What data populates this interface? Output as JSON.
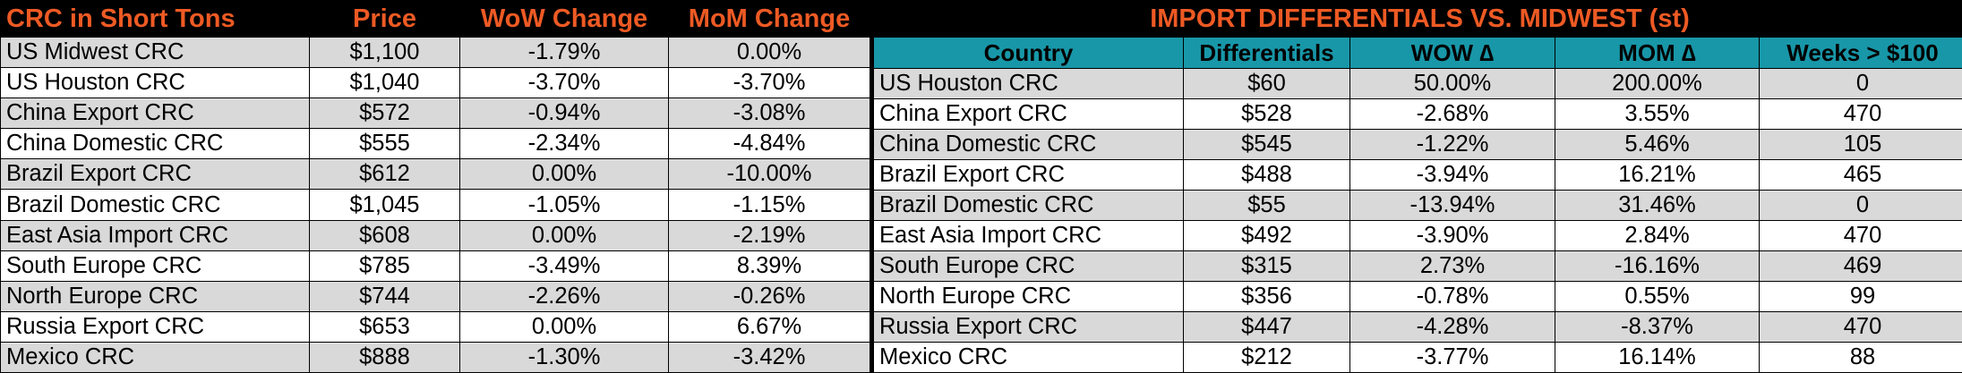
{
  "left": {
    "headers": [
      "CRC in Short Tons",
      "Price",
      "WoW Change",
      "MoM Change"
    ],
    "rows": [
      [
        "US Midwest CRC",
        "$1,100",
        "-1.79%",
        "0.00%"
      ],
      [
        "US Houston CRC",
        "$1,040",
        "-3.70%",
        "-3.70%"
      ],
      [
        "China Export CRC",
        "$572",
        "-0.94%",
        "-3.08%"
      ],
      [
        "China Domestic CRC",
        "$555",
        "-2.34%",
        "-4.84%"
      ],
      [
        "Brazil Export CRC",
        "$612",
        "0.00%",
        "-10.00%"
      ],
      [
        "Brazil Domestic CRC",
        "$1,045",
        "-1.05%",
        "-1.15%"
      ],
      [
        "East Asia Import CRC",
        "$608",
        "0.00%",
        "-2.19%"
      ],
      [
        "South Europe CRC",
        "$785",
        "-3.49%",
        "8.39%"
      ],
      [
        "North Europe CRC",
        "$744",
        "-2.26%",
        "-0.26%"
      ],
      [
        "Russia Export CRC",
        "$653",
        "0.00%",
        "6.67%"
      ],
      [
        "Mexico CRC",
        "$888",
        "-1.30%",
        "-3.42%"
      ]
    ]
  },
  "right": {
    "title": "IMPORT DIFFERENTIALS VS. MIDWEST (st)",
    "headers": [
      "Country",
      "Differentials",
      "WOW ∆",
      "MOM ∆",
      "Weeks > $100"
    ],
    "rows": [
      [
        "US Houston CRC",
        "$60",
        "50.00%",
        "200.00%",
        "0"
      ],
      [
        "China Export CRC",
        "$528",
        "-2.68%",
        "3.55%",
        "470"
      ],
      [
        "China Domestic CRC",
        "$545",
        "-1.22%",
        "5.46%",
        "105"
      ],
      [
        "Brazil Export CRC",
        "$488",
        "-3.94%",
        "16.21%",
        "465"
      ],
      [
        "Brazil Domestic CRC",
        "$55",
        "-13.94%",
        "31.46%",
        "0"
      ],
      [
        "East Asia Import CRC",
        "$492",
        "-3.90%",
        "2.84%",
        "470"
      ],
      [
        "South Europe CRC",
        "$315",
        "2.73%",
        "-16.16%",
        "469"
      ],
      [
        "North Europe CRC",
        "$356",
        "-0.78%",
        "0.55%",
        "99"
      ],
      [
        "Russia Export CRC",
        "$447",
        "-4.28%",
        "-8.37%",
        "470"
      ],
      [
        "Mexico CRC",
        "$212",
        "-3.77%",
        "16.14%",
        "88"
      ]
    ]
  },
  "colors": {
    "header_bg": "#000000",
    "header_text": "#ee5a24",
    "teal": "#1897a8",
    "row_shade": "#d9d9d9",
    "row_plain": "#ffffff"
  }
}
